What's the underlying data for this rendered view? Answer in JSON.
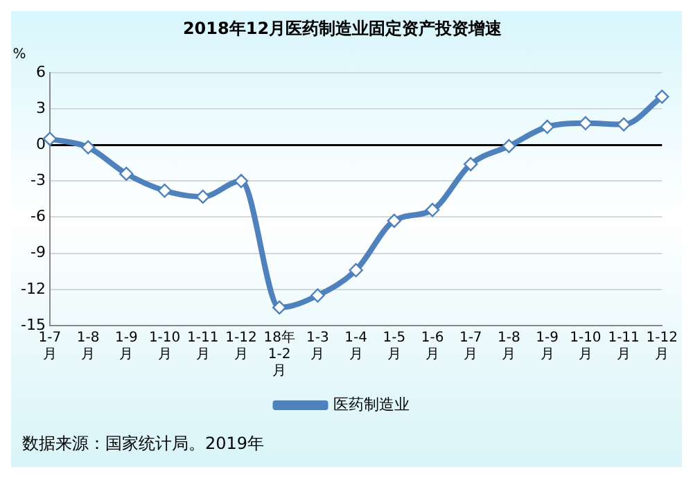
{
  "chart_data": {
    "type": "line",
    "title": "2018年12月医药制造业固定资产投资增速",
    "ylabel": "%",
    "categories": [
      "1-7月",
      "1-8月",
      "1-9月",
      "1-10月",
      "1-11月",
      "1-12月",
      "18年1-2月",
      "1-3月",
      "1-4月",
      "1-5月",
      "1-6月",
      "1-7月",
      "1-8月",
      "1-9月",
      "1-10月",
      "1-11月",
      "1-12月"
    ],
    "series": [
      {
        "name": "医药制造业",
        "color": "#4f81bd",
        "values": [
          0.5,
          -0.2,
          -2.4,
          -3.8,
          -4.3,
          -3.0,
          -13.5,
          -12.5,
          -10.4,
          -6.3,
          -5.4,
          -1.6,
          -0.1,
          1.5,
          1.8,
          1.7,
          4.0
        ]
      }
    ],
    "ylim": [
      -15,
      6
    ],
    "yticks": [
      -15,
      -12,
      -9,
      -6,
      -3,
      0,
      3,
      6
    ],
    "grid": "y",
    "legend": "bottom",
    "marker": "diamond",
    "line_style": "solid",
    "annotations": [
      "数据来源：国家统计局。2019年"
    ]
  }
}
